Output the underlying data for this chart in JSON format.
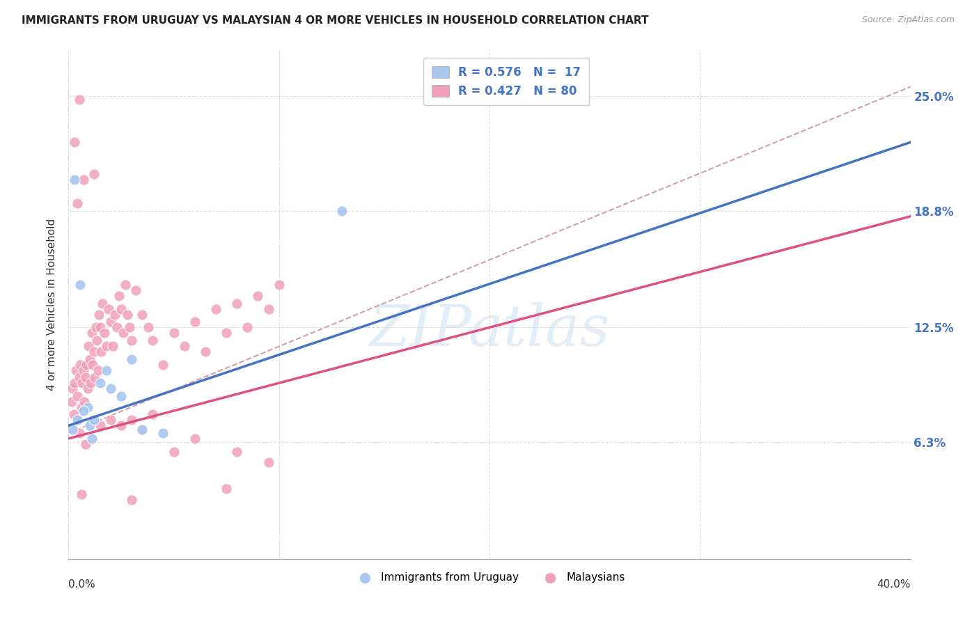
{
  "title": "IMMIGRANTS FROM URUGUAY VS MALAYSIAN 4 OR MORE VEHICLES IN HOUSEHOLD CORRELATION CHART",
  "source": "Source: ZipAtlas.com",
  "ylabel": "4 or more Vehicles in Household",
  "ytick_labels": [
    "25.0%",
    "18.8%",
    "12.5%",
    "6.3%"
  ],
  "ytick_values": [
    25.0,
    18.8,
    12.5,
    6.3
  ],
  "ymin": 0.0,
  "ymax": 27.5,
  "xmin": 0.0,
  "xmax": 40.0,
  "watermark_text": "ZIPatlas",
  "legend_r_uruguay": "R = 0.576",
  "legend_n_uruguay": "N =  17",
  "legend_r_malaysia": "R = 0.427",
  "legend_n_malaysia": "N = 80",
  "color_uruguay": "#A8C8F0",
  "color_malaysia": "#F0A0B8",
  "color_trendline_uruguay": "#4472C4",
  "color_trendline_malaysia": "#E05080",
  "color_trendline_dashed": "#D0A0A8",
  "color_legend_text": "#4472C4",
  "trendline_uru_x0": 0.0,
  "trendline_uru_y0": 7.2,
  "trendline_uru_x1": 40.0,
  "trendline_uru_y1": 22.5,
  "trendline_mal_x0": 0.0,
  "trendline_mal_y0": 6.5,
  "trendline_mal_x1": 40.0,
  "trendline_mal_y1": 18.5,
  "trendline_dash_x0": 0.0,
  "trendline_dash_y0": 6.8,
  "trendline_dash_x1": 40.0,
  "trendline_dash_y1": 25.5,
  "uruguay_points": [
    [
      0.3,
      20.5
    ],
    [
      0.55,
      14.8
    ],
    [
      0.9,
      8.2
    ],
    [
      1.0,
      7.2
    ],
    [
      1.1,
      6.5
    ],
    [
      1.2,
      7.5
    ],
    [
      1.5,
      9.5
    ],
    [
      1.8,
      10.2
    ],
    [
      2.0,
      9.2
    ],
    [
      2.5,
      8.8
    ],
    [
      3.0,
      10.8
    ],
    [
      3.5,
      7.0
    ],
    [
      4.5,
      6.8
    ],
    [
      13.0,
      18.8
    ],
    [
      0.2,
      7.0
    ],
    [
      0.4,
      7.5
    ],
    [
      0.7,
      8.0
    ]
  ],
  "malaysia_points": [
    [
      0.15,
      8.5
    ],
    [
      0.2,
      9.2
    ],
    [
      0.25,
      7.8
    ],
    [
      0.3,
      9.5
    ],
    [
      0.35,
      10.2
    ],
    [
      0.4,
      8.8
    ],
    [
      0.45,
      7.5
    ],
    [
      0.5,
      9.8
    ],
    [
      0.55,
      10.5
    ],
    [
      0.6,
      8.2
    ],
    [
      0.65,
      9.5
    ],
    [
      0.7,
      10.2
    ],
    [
      0.75,
      8.5
    ],
    [
      0.8,
      9.8
    ],
    [
      0.85,
      10.5
    ],
    [
      0.9,
      9.2
    ],
    [
      0.95,
      11.5
    ],
    [
      1.0,
      10.8
    ],
    [
      1.05,
      9.5
    ],
    [
      1.1,
      12.2
    ],
    [
      1.15,
      10.5
    ],
    [
      1.2,
      11.2
    ],
    [
      1.25,
      9.8
    ],
    [
      1.3,
      12.5
    ],
    [
      1.35,
      11.8
    ],
    [
      1.4,
      10.2
    ],
    [
      1.45,
      13.2
    ],
    [
      1.5,
      12.5
    ],
    [
      1.55,
      11.2
    ],
    [
      1.6,
      13.8
    ],
    [
      1.7,
      12.2
    ],
    [
      1.8,
      11.5
    ],
    [
      1.9,
      13.5
    ],
    [
      2.0,
      12.8
    ],
    [
      2.1,
      11.5
    ],
    [
      2.2,
      13.2
    ],
    [
      2.3,
      12.5
    ],
    [
      2.4,
      14.2
    ],
    [
      2.5,
      13.5
    ],
    [
      2.6,
      12.2
    ],
    [
      2.7,
      14.8
    ],
    [
      2.8,
      13.2
    ],
    [
      2.9,
      12.5
    ],
    [
      3.0,
      11.8
    ],
    [
      3.2,
      14.5
    ],
    [
      3.5,
      13.2
    ],
    [
      3.8,
      12.5
    ],
    [
      4.0,
      11.8
    ],
    [
      4.5,
      10.5
    ],
    [
      5.0,
      12.2
    ],
    [
      5.5,
      11.5
    ],
    [
      6.0,
      12.8
    ],
    [
      6.5,
      11.2
    ],
    [
      7.0,
      13.5
    ],
    [
      7.5,
      12.2
    ],
    [
      8.0,
      13.8
    ],
    [
      8.5,
      12.5
    ],
    [
      9.0,
      14.2
    ],
    [
      9.5,
      13.5
    ],
    [
      10.0,
      14.8
    ],
    [
      0.3,
      22.5
    ],
    [
      0.5,
      24.8
    ],
    [
      0.7,
      20.5
    ],
    [
      1.2,
      20.8
    ],
    [
      0.4,
      19.2
    ],
    [
      2.5,
      7.2
    ],
    [
      3.0,
      7.5
    ],
    [
      3.5,
      7.0
    ],
    [
      4.0,
      7.8
    ],
    [
      5.0,
      5.8
    ],
    [
      6.0,
      6.5
    ],
    [
      0.5,
      6.8
    ],
    [
      0.8,
      6.2
    ],
    [
      1.5,
      7.2
    ],
    [
      2.0,
      7.5
    ],
    [
      8.0,
      5.8
    ],
    [
      9.5,
      5.2
    ],
    [
      0.6,
      3.5
    ],
    [
      3.0,
      3.2
    ],
    [
      7.5,
      3.8
    ]
  ]
}
